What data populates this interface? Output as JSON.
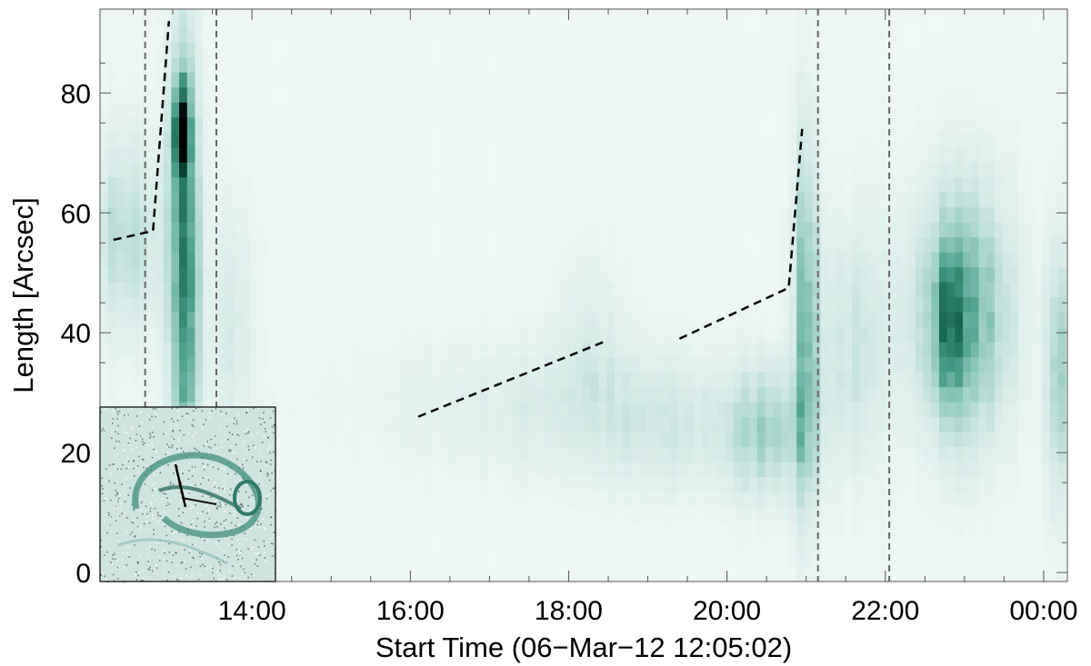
{
  "chart_data": {
    "type": "heatmap",
    "title": "",
    "xlabel": "Start Time (06−Mar−12 12:05:02)",
    "ylabel": "Length [Arcsec]",
    "x_unit": "hours",
    "xlim": [
      12.08,
      24.3
    ],
    "ylim": [
      -1.5,
      94
    ],
    "x_ticks": [
      {
        "value": 14,
        "label": "14:00"
      },
      {
        "value": 16,
        "label": "16:00"
      },
      {
        "value": 18,
        "label": "18:00"
      },
      {
        "value": 20,
        "label": "20:00"
      },
      {
        "value": 22,
        "label": "22:00"
      },
      {
        "value": 24,
        "label": "00:00"
      }
    ],
    "y_ticks": [
      {
        "value": 0,
        "label": "0"
      },
      {
        "value": 20,
        "label": "20"
      },
      {
        "value": 40,
        "label": "40"
      },
      {
        "value": 60,
        "label": "60"
      },
      {
        "value": 80,
        "label": "80"
      }
    ],
    "colormap": [
      "#f4faf9",
      "#d6ebe7",
      "#9ccfc4",
      "#4a9e8a",
      "#0d5c44",
      "#000000"
    ],
    "intensity_sources": [
      {
        "t": 13.1,
        "l": 48,
        "sigma_t": 0.13,
        "sigma_l": 28,
        "amp": 0.6
      },
      {
        "t": 13.05,
        "l": 73,
        "sigma_t": 0.08,
        "sigma_l": 6,
        "amp": 0.55
      },
      {
        "t": 12.35,
        "l": 55,
        "sigma_t": 0.35,
        "sigma_l": 12,
        "amp": 0.25
      },
      {
        "t": 13.7,
        "l": 40,
        "sigma_t": 0.2,
        "sigma_l": 15,
        "amp": 0.15
      },
      {
        "t": 20.95,
        "l": 42,
        "sigma_t": 0.12,
        "sigma_l": 22,
        "amp": 0.4
      },
      {
        "t": 20.5,
        "l": 22,
        "sigma_t": 0.35,
        "sigma_l": 8,
        "amp": 0.25
      },
      {
        "t": 21.5,
        "l": 38,
        "sigma_t": 0.3,
        "sigma_l": 15,
        "amp": 0.18
      },
      {
        "t": 22.9,
        "l": 42,
        "sigma_t": 0.45,
        "sigma_l": 15,
        "amp": 0.5
      },
      {
        "t": 22.75,
        "l": 40,
        "sigma_t": 0.12,
        "sigma_l": 9,
        "amp": 0.3
      },
      {
        "t": 24.15,
        "l": 32,
        "sigma_t": 0.12,
        "sigma_l": 15,
        "amp": 0.3
      },
      {
        "t": 17.8,
        "l": 27,
        "sigma_t": 1.6,
        "sigma_l": 8,
        "amp": 0.12
      },
      {
        "t": 18.2,
        "l": 40,
        "sigma_t": 0.3,
        "sigma_l": 10,
        "amp": 0.1
      },
      {
        "t": 19.4,
        "l": 22,
        "sigma_t": 1.0,
        "sigma_l": 8,
        "amp": 0.1
      }
    ],
    "dashed_fit_lines": [
      {
        "name": "track-1",
        "points": [
          [
            12.25,
            55.5
          ],
          [
            12.75,
            57
          ],
          [
            12.95,
            92
          ]
        ]
      },
      {
        "name": "track-2",
        "points": [
          [
            16.1,
            26
          ],
          [
            18.45,
            38.5
          ]
        ]
      },
      {
        "name": "track-3",
        "points": [
          [
            19.4,
            39
          ],
          [
            20.78,
            47.5
          ],
          [
            20.95,
            74
          ]
        ]
      }
    ],
    "vertical_markers": [
      12.65,
      13.55,
      21.15,
      22.05
    ],
    "inset": {
      "description_icon": "solar-context-image-icon"
    }
  }
}
